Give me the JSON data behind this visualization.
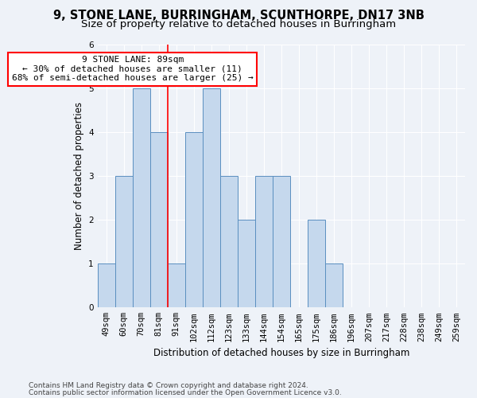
{
  "title": "9, STONE LANE, BURRINGHAM, SCUNTHORPE, DN17 3NB",
  "subtitle": "Size of property relative to detached houses in Burringham",
  "xlabel": "Distribution of detached houses by size in Burringham",
  "ylabel": "Number of detached properties",
  "footnote1": "Contains HM Land Registry data © Crown copyright and database right 2024.",
  "footnote2": "Contains public sector information licensed under the Open Government Licence v3.0.",
  "annotation_line1": "9 STONE LANE: 89sqm",
  "annotation_line2": "← 30% of detached houses are smaller (11)",
  "annotation_line3": "68% of semi-detached houses are larger (25) →",
  "bin_labels": [
    "49sqm",
    "60sqm",
    "70sqm",
    "81sqm",
    "91sqm",
    "102sqm",
    "112sqm",
    "123sqm",
    "133sqm",
    "144sqm",
    "154sqm",
    "165sqm",
    "175sqm",
    "186sqm",
    "196sqm",
    "207sqm",
    "217sqm",
    "228sqm",
    "238sqm",
    "249sqm",
    "259sqm"
  ],
  "bar_heights": [
    1,
    3,
    5,
    4,
    1,
    4,
    5,
    3,
    2,
    3,
    3,
    0,
    2,
    1,
    0,
    0,
    0,
    0,
    0,
    0,
    0
  ],
  "bar_color": "#c5d8ed",
  "bar_edge_color": "#5a8fc0",
  "ylim": [
    0,
    6
  ],
  "yticks": [
    0,
    1,
    2,
    3,
    4,
    5,
    6
  ],
  "bg_color": "#eef2f8",
  "annotation_box_color": "white",
  "annotation_box_edge": "red",
  "title_fontsize": 10.5,
  "subtitle_fontsize": 9.5,
  "axis_label_fontsize": 8.5,
  "tick_fontsize": 7.5,
  "footnote_fontsize": 6.5,
  "annotation_fontsize": 8
}
